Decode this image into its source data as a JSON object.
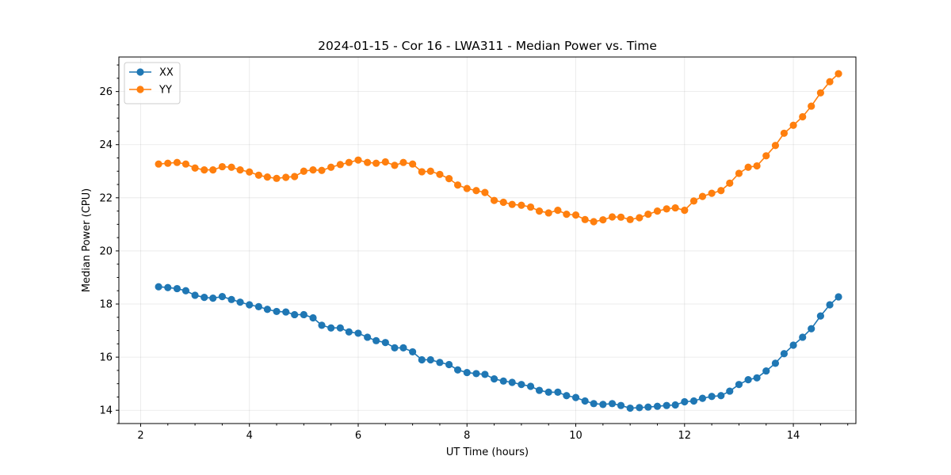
{
  "chart_data": {
    "type": "line",
    "title": "2024-01-15 - Cor 16 - LWA311 - Median Power vs. Time",
    "xlabel": "UT Time (hours)",
    "ylabel": "Median Power (CPU)",
    "xlim": [
      1.6,
      15.15
    ],
    "ylim": [
      13.5,
      27.3
    ],
    "xticks": [
      2,
      4,
      6,
      8,
      10,
      12,
      14
    ],
    "yticks": [
      14,
      16,
      18,
      20,
      22,
      24,
      26
    ],
    "grid": true,
    "legend_position": "top-left",
    "x": [
      2.33,
      2.5,
      2.67,
      2.83,
      3.0,
      3.17,
      3.33,
      3.5,
      3.67,
      3.83,
      4.0,
      4.17,
      4.33,
      4.5,
      4.67,
      4.83,
      5.0,
      5.17,
      5.33,
      5.5,
      5.67,
      5.83,
      6.0,
      6.17,
      6.33,
      6.5,
      6.67,
      6.83,
      7.0,
      7.17,
      7.33,
      7.5,
      7.67,
      7.83,
      8.0,
      8.17,
      8.33,
      8.5,
      8.67,
      8.83,
      9.0,
      9.17,
      9.33,
      9.5,
      9.67,
      9.83,
      10.0,
      10.17,
      10.33,
      10.5,
      10.67,
      10.83,
      11.0,
      11.17,
      11.33,
      11.5,
      11.67,
      11.83,
      12.0,
      12.17,
      12.33,
      12.5,
      12.67,
      12.83,
      13.0,
      13.17,
      13.33,
      13.5,
      13.67,
      13.83,
      14.0,
      14.17,
      14.33,
      14.5,
      14.67,
      14.83
    ],
    "series": [
      {
        "name": "XX",
        "color": "#1f77b4",
        "values": [
          18.65,
          18.62,
          18.58,
          18.5,
          18.33,
          18.25,
          18.22,
          18.28,
          18.17,
          18.07,
          17.97,
          17.9,
          17.8,
          17.72,
          17.7,
          17.6,
          17.6,
          17.48,
          17.2,
          17.1,
          17.1,
          16.95,
          16.9,
          16.75,
          16.62,
          16.55,
          16.35,
          16.35,
          16.2,
          15.9,
          15.9,
          15.8,
          15.72,
          15.52,
          15.42,
          15.38,
          15.35,
          15.18,
          15.1,
          15.05,
          14.97,
          14.9,
          14.75,
          14.68,
          14.68,
          14.55,
          14.48,
          14.35,
          14.25,
          14.22,
          14.25,
          14.18,
          14.08,
          14.1,
          14.12,
          14.15,
          14.18,
          14.2,
          14.32,
          14.35,
          14.45,
          14.52,
          14.55,
          14.72,
          14.97,
          15.15,
          15.22,
          15.48,
          15.77,
          16.13,
          16.45,
          16.75,
          17.07,
          17.55,
          17.97,
          18.27
        ]
      },
      {
        "name": "YY",
        "color": "#ff7f0e",
        "values": [
          23.27,
          23.3,
          23.33,
          23.27,
          23.12,
          23.05,
          23.05,
          23.17,
          23.15,
          23.05,
          22.97,
          22.85,
          22.78,
          22.73,
          22.77,
          22.8,
          23.0,
          23.05,
          23.03,
          23.15,
          23.25,
          23.33,
          23.42,
          23.33,
          23.3,
          23.35,
          23.22,
          23.33,
          23.27,
          22.98,
          23.0,
          22.88,
          22.72,
          22.48,
          22.35,
          22.27,
          22.2,
          21.9,
          21.83,
          21.75,
          21.72,
          21.65,
          21.5,
          21.43,
          21.53,
          21.38,
          21.35,
          21.18,
          21.1,
          21.17,
          21.28,
          21.27,
          21.18,
          21.25,
          21.38,
          21.5,
          21.58,
          21.62,
          21.53,
          21.88,
          22.05,
          22.17,
          22.27,
          22.55,
          22.92,
          23.15,
          23.2,
          23.58,
          23.97,
          24.43,
          24.73,
          25.05,
          25.45,
          25.95,
          26.37,
          26.67
        ]
      }
    ]
  }
}
